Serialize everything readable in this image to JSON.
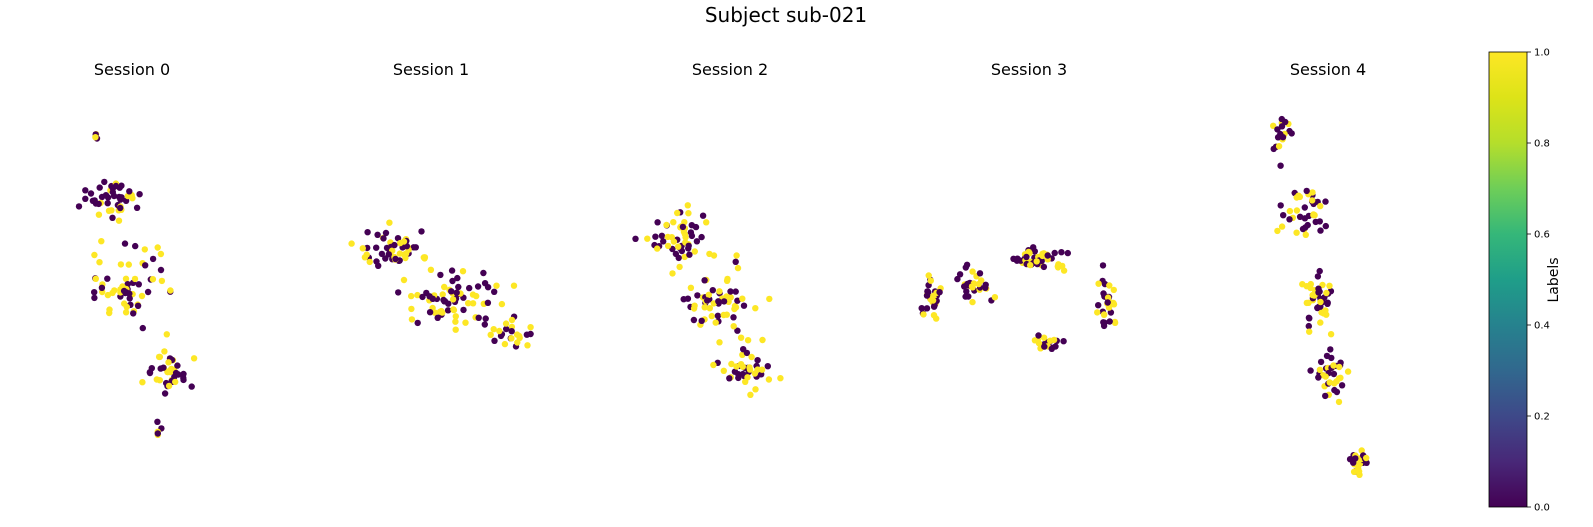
{
  "chart_data": {
    "type": "scatter",
    "title": "Subject sub-021",
    "colorbar": {
      "label": "Labels",
      "ticks": [
        "0.0",
        "0.2",
        "0.4",
        "0.6",
        "0.8",
        "1.0"
      ],
      "range": [
        0,
        1
      ],
      "colormap": "viridis"
    },
    "colors": {
      "label_0": "#440154",
      "label_1": "#fde725"
    },
    "axes_visible": false,
    "panels": [
      {
        "title": "Session 0"
      },
      {
        "title": "Session 1"
      },
      {
        "title": "Session 2"
      },
      {
        "title": "Session 3"
      },
      {
        "title": "Session 4"
      }
    ]
  }
}
